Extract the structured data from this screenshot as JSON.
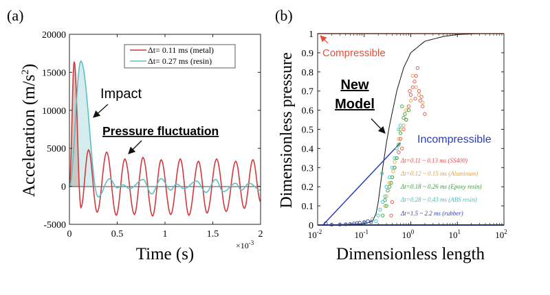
{
  "chart_data": [
    {
      "type": "line",
      "panel_label": "(a)",
      "xlabel": "Time (s)",
      "x_multiplier": "×10",
      "x_multiplier_exp": "-3",
      "ylabel": "Acceleration (m/s",
      "ylabel_sup": "2",
      "ylabel_end": ")",
      "xlim": [
        0,
        2
      ],
      "ylim": [
        -5000,
        20000
      ],
      "xticks": [
        "0",
        "0.5",
        "1",
        "1.5",
        "2"
      ],
      "yticks": [
        "-5000",
        "0",
        "5000",
        "10000",
        "15000",
        "20000"
      ],
      "grid": false,
      "legend_position": "top-right",
      "annotations": {
        "impact": "Impact",
        "fluctuation": "Pressure fluctuation"
      },
      "series": [
        {
          "name": "Δt= 0.11 ms (metal)",
          "color": "#d2373a",
          "extrema": [
            [
              0,
              0
            ],
            [
              0.05,
              16400
            ],
            [
              0.12,
              -2800
            ],
            [
              0.2,
              4800
            ],
            [
              0.29,
              -3400
            ],
            [
              0.39,
              4500
            ],
            [
              0.49,
              -3800
            ],
            [
              0.58,
              3600
            ],
            [
              0.68,
              -3700
            ],
            [
              0.77,
              3800
            ],
            [
              0.87,
              -3900
            ],
            [
              0.96,
              3500
            ],
            [
              1.06,
              -3700
            ],
            [
              1.16,
              3600
            ],
            [
              1.25,
              -3800
            ],
            [
              1.35,
              3300
            ],
            [
              1.44,
              -3500
            ],
            [
              1.54,
              3600
            ],
            [
              1.64,
              -3300
            ],
            [
              1.74,
              3300
            ],
            [
              1.83,
              -2900
            ],
            [
              1.92,
              3500
            ],
            [
              2.0,
              -2000
            ]
          ]
        },
        {
          "name": "Δt= 0.27 ms (resin)",
          "color": "#5bbfc2",
          "extrema": [
            [
              0,
              0
            ],
            [
              0.12,
              16500
            ],
            [
              0.3,
              -1400
            ],
            [
              0.42,
              1000
            ],
            [
              0.5,
              -200
            ],
            [
              0.56,
              200
            ],
            [
              0.63,
              -300
            ],
            [
              0.77,
              900
            ],
            [
              0.86,
              -1000
            ],
            [
              0.96,
              1000
            ],
            [
              1.06,
              -500
            ],
            [
              1.12,
              300
            ],
            [
              1.2,
              -300
            ],
            [
              1.33,
              700
            ],
            [
              1.43,
              -800
            ],
            [
              1.53,
              900
            ],
            [
              1.61,
              -700
            ],
            [
              1.74,
              400
            ],
            [
              1.8,
              -500
            ],
            [
              1.88,
              400
            ],
            [
              2.0,
              -500
            ]
          ]
        }
      ]
    },
    {
      "type": "scatter",
      "panel_label": "(b)",
      "xlabel": "Dimensionless length",
      "ylabel": "Dimensionless pressure",
      "xscale": "log",
      "xlim": [
        0.01,
        100
      ],
      "ylim": [
        0,
        1
      ],
      "xticks": [
        {
          "base": "10",
          "exp": "-2"
        },
        {
          "base": "10",
          "exp": "-1"
        },
        {
          "base": "10",
          "exp": "0"
        },
        {
          "base": "10",
          "exp": "1"
        },
        {
          "base": "10",
          "exp": "2"
        }
      ],
      "yticks": [
        "0",
        "0.1",
        "0.2",
        "0.3",
        "0.4",
        "0.5",
        "0.6",
        "0.7",
        "0.8",
        "0.9",
        "1"
      ],
      "grid": false,
      "annotations": {
        "compressible": "Compressible",
        "incompressible": "Incompressible",
        "new_model_1": "New",
        "new_model_2": "Model"
      },
      "lines": {
        "new_model": {
          "color": "#111111",
          "points": [
            [
              0.01,
              0
            ],
            [
              0.1,
              0.005
            ],
            [
              0.15,
              0.02
            ],
            [
              0.18,
              0.06
            ],
            [
              0.2,
              0.12
            ],
            [
              0.25,
              0.3
            ],
            [
              0.3,
              0.43
            ],
            [
              0.35,
              0.52
            ],
            [
              0.5,
              0.7
            ],
            [
              0.7,
              0.82
            ],
            [
              1,
              0.9
            ],
            [
              2,
              0.96
            ],
            [
              5,
              0.985
            ],
            [
              10,
              0.995
            ],
            [
              30,
              1
            ],
            [
              100,
              1
            ]
          ]
        },
        "compressible": {
          "color": "#e0503a",
          "points": [
            [
              0.01,
              1
            ],
            [
              100,
              1
            ]
          ]
        },
        "incompressible": {
          "color": "#2a3cc0",
          "points": [
            [
              0.013,
              0
            ],
            [
              0.6,
              0.43
            ]
          ]
        },
        "baseline": {
          "color": "#2a3cc0",
          "points": [
            [
              0.01,
              0
            ],
            [
              100,
              0
            ]
          ]
        }
      },
      "series": [
        {
          "name": "Δt=0.11 ~ 0.13 ms (SS400)",
          "color": "#d9534f",
          "points": [
            [
              0.45,
              0.3
            ],
            [
              0.5,
              0.35
            ],
            [
              0.55,
              0.38
            ],
            [
              0.6,
              0.45
            ],
            [
              0.7,
              0.5
            ],
            [
              0.8,
              0.55
            ],
            [
              0.9,
              0.62
            ],
            [
              1.0,
              0.68
            ],
            [
              1.1,
              0.72
            ],
            [
              1.2,
              0.75
            ],
            [
              1.3,
              0.78
            ],
            [
              1.4,
              0.82
            ],
            [
              1.5,
              0.7
            ],
            [
              1.6,
              0.65
            ],
            [
              1.8,
              0.62
            ],
            [
              2.0,
              0.58
            ],
            [
              1.7,
              0.67
            ],
            [
              0.65,
              0.4
            ],
            [
              0.4,
              0.12
            ],
            [
              0.38,
              0.05
            ],
            [
              1.25,
              0.66
            ],
            [
              0.95,
              0.7
            ]
          ]
        },
        {
          "name": "Δt=0.12 ~ 0.15 ms (Aluminum)",
          "color": "#e8a040",
          "points": [
            [
              0.3,
              0.15
            ],
            [
              0.35,
              0.22
            ],
            [
              0.4,
              0.25
            ],
            [
              0.45,
              0.33
            ],
            [
              0.5,
              0.4
            ],
            [
              0.6,
              0.5
            ],
            [
              0.7,
              0.52
            ],
            [
              0.8,
              0.6
            ],
            [
              1.0,
              0.65
            ],
            [
              1.1,
              0.78
            ],
            [
              1.3,
              0.72
            ],
            [
              1.5,
              0.68
            ],
            [
              1.8,
              0.64
            ],
            [
              0.55,
              0.45
            ],
            [
              0.42,
              0.28
            ],
            [
              0.28,
              0.1
            ]
          ]
        },
        {
          "name": "Δt=0.18 ~ 0.26 ms (Epoxy resin)",
          "color": "#3a9a3a",
          "points": [
            [
              0.25,
              0.05
            ],
            [
              0.3,
              0.1
            ],
            [
              0.32,
              0.18
            ],
            [
              0.35,
              0.2
            ],
            [
              0.4,
              0.25
            ],
            [
              0.45,
              0.3
            ],
            [
              0.5,
              0.35
            ],
            [
              0.55,
              0.42
            ],
            [
              0.6,
              0.48
            ],
            [
              0.7,
              0.56
            ],
            [
              0.75,
              0.58
            ],
            [
              0.8,
              0.55
            ],
            [
              0.9,
              0.6
            ],
            [
              0.65,
              0.62
            ],
            [
              0.38,
              0.22
            ],
            [
              0.28,
              0.13
            ]
          ]
        },
        {
          "name": "Δt=0.28 ~ 0.43 ms (ABS resin)",
          "color": "#40c0c0",
          "points": [
            [
              0.1,
              0.01
            ],
            [
              0.12,
              0.02
            ],
            [
              0.15,
              0.03
            ],
            [
              0.18,
              0.02
            ],
            [
              0.2,
              0.05
            ],
            [
              0.22,
              0.08
            ],
            [
              0.25,
              0.12
            ],
            [
              0.28,
              0.15
            ],
            [
              0.3,
              0.2
            ],
            [
              0.35,
              0.25
            ],
            [
              0.4,
              0.3
            ],
            [
              0.45,
              0.35
            ],
            [
              0.5,
              0.4
            ],
            [
              0.55,
              0.5
            ],
            [
              0.6,
              0.52
            ],
            [
              0.24,
              0.27
            ]
          ]
        },
        {
          "name": "Δt=1.5 ~ 2.2 ms (rubber)",
          "color": "#3040b0",
          "points": [
            [
              0.02,
              0.002
            ],
            [
              0.03,
              0.003
            ],
            [
              0.04,
              0.004
            ],
            [
              0.05,
              0.005
            ],
            [
              0.06,
              0.008
            ],
            [
              0.07,
              0.01
            ],
            [
              0.08,
              0.012
            ],
            [
              0.1,
              0.015
            ],
            [
              0.12,
              0.02
            ],
            [
              0.14,
              0.015
            ],
            [
              0.015,
              0.01
            ]
          ]
        }
      ]
    }
  ]
}
